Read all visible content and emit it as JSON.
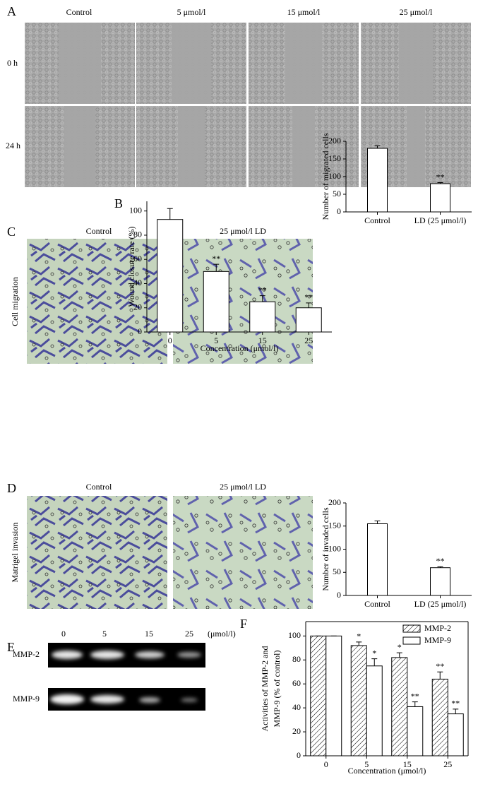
{
  "panel_labels": [
    "A",
    "B",
    "C",
    "D",
    "E",
    "F"
  ],
  "panel_a": {
    "columns": [
      "Control",
      "5 μmol/l",
      "15 μmol/l",
      "25 μmol/l"
    ],
    "rows": [
      "0 h",
      "24 h"
    ]
  },
  "panel_c": {
    "row_label": "Cell migration",
    "columns": [
      "Control",
      "25 μmol/l  LD"
    ]
  },
  "panel_d": {
    "row_label": "Matrigel invasion",
    "columns": [
      "Control",
      "25 μmol/l  LD"
    ]
  },
  "panel_e": {
    "lanes": [
      "0",
      "5",
      "15",
      "25"
    ],
    "unit": "(μmol/l)",
    "rows": [
      "MMP-2",
      "MMP-9"
    ]
  },
  "chart_data": [
    {
      "type": "bar",
      "categories": [
        "0",
        "5",
        "15",
        "25"
      ],
      "values": [
        93,
        50,
        25,
        20
      ],
      "errors": [
        9,
        6,
        5,
        4
      ],
      "annotations": [
        null,
        "**",
        "**",
        "**"
      ],
      "color": "#ffffff",
      "x_label": "Concentration (μmol/l)",
      "y_label": "Wound closure rate (%)",
      "ylim": [
        0,
        108
      ],
      "yticks": [
        0,
        20,
        40,
        60,
        80,
        100
      ]
    },
    {
      "type": "bar",
      "categories": [
        "Control",
        "LD (25 μmol/l)"
      ],
      "values": [
        180,
        80
      ],
      "errors": [
        7,
        3
      ],
      "annotations": [
        null,
        "**"
      ],
      "color": "#ffffff",
      "y_label": "Number of migrated cells",
      "ylim": [
        0,
        200
      ],
      "yticks": [
        0,
        50,
        100,
        150,
        200
      ]
    },
    {
      "type": "bar",
      "categories": [
        "Control",
        "LD (25 μmol/l)"
      ],
      "values": [
        155,
        60
      ],
      "errors": [
        6,
        2
      ],
      "annotations": [
        null,
        "**"
      ],
      "color": "#ffffff",
      "y_label": "Number of invaded cells",
      "ylim": [
        0,
        200
      ],
      "yticks": [
        0,
        50,
        100,
        150,
        200
      ]
    },
    {
      "type": "bar",
      "categories": [
        "0",
        "5",
        "15",
        "25"
      ],
      "series": [
        {
          "name": "MMP-2",
          "color": "#ffffff",
          "hatch": true,
          "values": [
            100,
            92,
            82,
            64
          ],
          "errors": [
            0,
            3,
            4,
            6
          ],
          "annotations": [
            null,
            "*",
            "*",
            "**"
          ]
        },
        {
          "name": "MMP-9",
          "color": "#ffffff",
          "hatch": false,
          "values": [
            100,
            75,
            41,
            35
          ],
          "errors": [
            0,
            6,
            4,
            4
          ],
          "annotations": [
            null,
            "*",
            "**",
            "**"
          ]
        }
      ],
      "x_label": "Concentration (μmol/l)",
      "y_label": [
        "Activities of MMP-2 and",
        "MMP-9 (% of control)"
      ],
      "ylim": [
        0,
        112
      ],
      "yticks": [
        0,
        20,
        40,
        60,
        80,
        100
      ],
      "legend": "upper right",
      "frame": true
    }
  ]
}
